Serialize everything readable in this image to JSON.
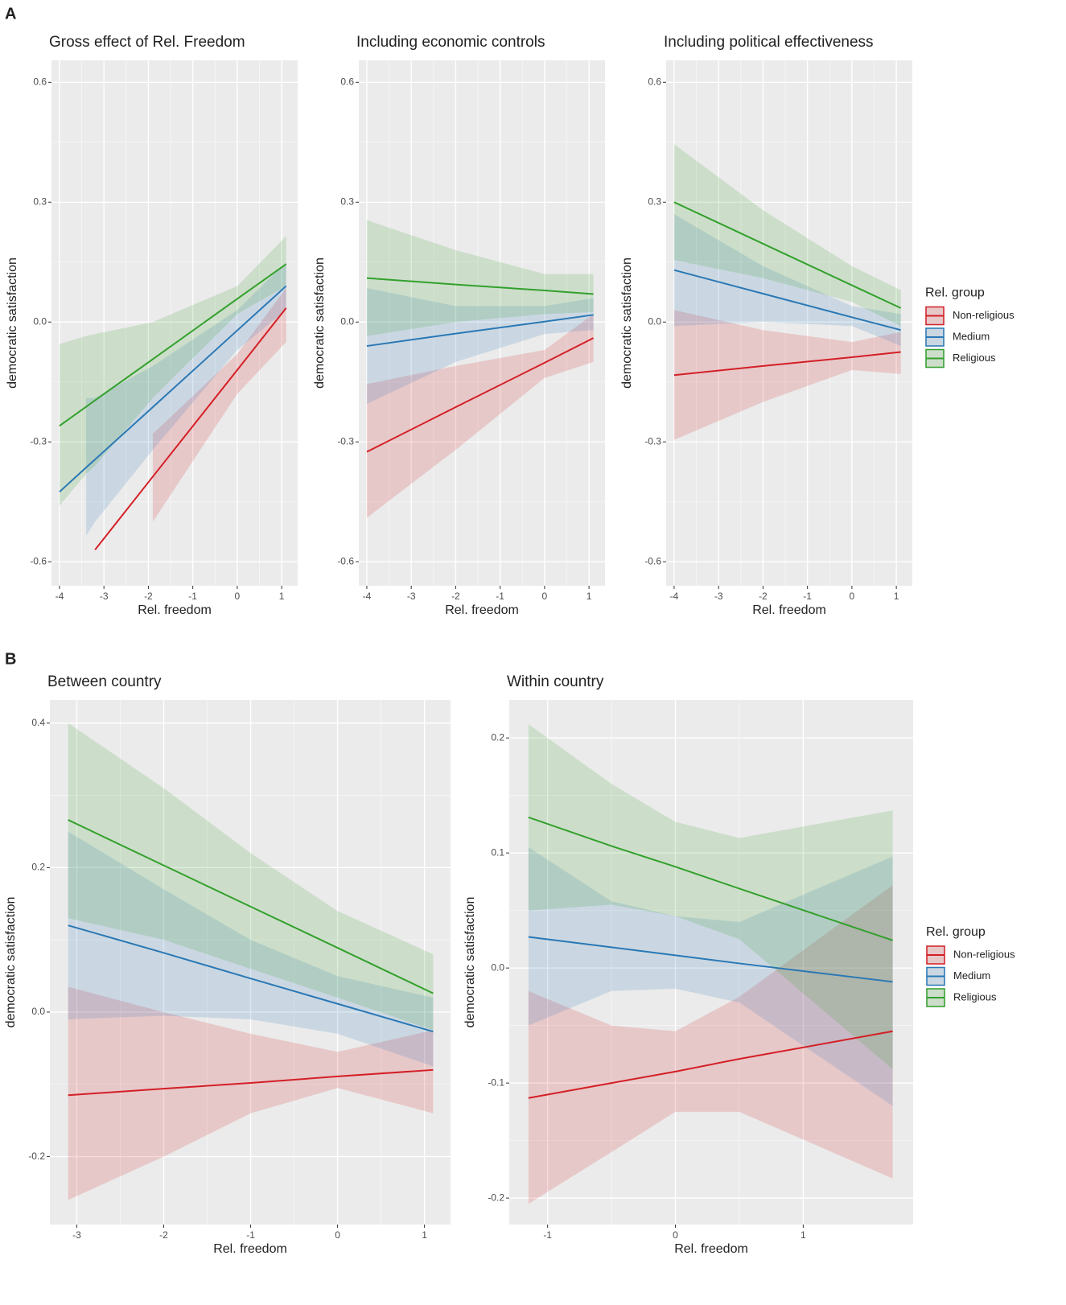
{
  "panel_labels": [
    "A",
    "B"
  ],
  "chart_data": [
    {
      "type": "line",
      "title": "Gross effect of Rel. Freedom",
      "x_label": "Rel. freedom",
      "y_label": "democratic satisfaction",
      "xlim": [
        -4.18,
        1.36
      ],
      "ylim": [
        -0.66,
        0.655
      ],
      "xticks": [
        -4,
        -3,
        -2,
        -1,
        0,
        1
      ],
      "yticks": [
        -0.6,
        -0.3,
        {
          "value": 0,
          "label": "0.0"
        },
        0.3,
        0.6
      ],
      "grid": true,
      "x": [
        -4,
        -3.4,
        -3.2,
        -1.9,
        0,
        1.1
      ],
      "series": [
        {
          "name": "Non-religious",
          "color": "#d41f26",
          "values": [
            null,
            null,
            -0.57,
            -0.387,
            -0.12,
            0.035
          ],
          "lower": [
            null,
            null,
            null,
            -0.5,
            -0.18,
            -0.05
          ],
          "upper": [
            null,
            null,
            null,
            -0.28,
            -0.08,
            0.085
          ]
        },
        {
          "name": "Medium",
          "color": "#2a78b5",
          "values": [
            -0.425,
            -0.364,
            -0.344,
            -0.213,
            -0.021,
            0.09
          ],
          "lower": [
            null,
            -0.535,
            -0.5,
            -0.32,
            -0.07,
            0.03
          ],
          "upper": [
            null,
            -0.19,
            -0.19,
            -0.11,
            0.03,
            0.15
          ]
        },
        {
          "name": "Religious",
          "color": "#33a02c",
          "values": [
            -0.26,
            -0.212,
            -0.196,
            -0.093,
            0.058,
            0.145
          ],
          "lower": [
            -0.46,
            -0.38,
            -0.36,
            -0.19,
            0.02,
            0.09
          ],
          "upper": [
            -0.055,
            -0.035,
            -0.03,
            0.0,
            0.09,
            0.215
          ]
        }
      ]
    },
    {
      "type": "line",
      "title": "Including economic controls",
      "x_label": "Rel. freedom",
      "y_label": "democratic satisfaction",
      "xlim": [
        -4.18,
        1.36
      ],
      "ylim": [
        -0.66,
        0.655
      ],
      "xticks": [
        -4,
        -3,
        -2,
        -1,
        0,
        1
      ],
      "yticks": [
        -0.6,
        -0.3,
        {
          "value": 0,
          "label": "0.0"
        },
        0.3,
        0.6
      ],
      "grid": true,
      "x": [
        -4,
        -2,
        0,
        1.1
      ],
      "series": [
        {
          "name": "Non-religious",
          "color": "#d41f26",
          "values": [
            -0.325,
            -0.213,
            -0.102,
            -0.04
          ],
          "lower": [
            -0.49,
            -0.32,
            -0.14,
            -0.1
          ],
          "upper": [
            -0.155,
            -0.11,
            -0.07,
            0.02
          ]
        },
        {
          "name": "Medium",
          "color": "#2a78b5",
          "values": [
            -0.06,
            -0.029,
            0.001,
            0.018
          ],
          "lower": [
            -0.205,
            -0.1,
            -0.03,
            -0.02
          ],
          "upper": [
            0.085,
            0.04,
            0.04,
            0.06
          ]
        },
        {
          "name": "Religious",
          "color": "#33a02c",
          "values": [
            0.11,
            0.094,
            0.079,
            0.07
          ],
          "lower": [
            -0.035,
            0.0,
            0.02,
            0.025
          ],
          "upper": [
            0.255,
            0.18,
            0.12,
            0.12
          ]
        }
      ]
    },
    {
      "type": "line",
      "title": "Including political effectiveness",
      "x_label": "Rel. freedom",
      "y_label": "democratic satisfaction",
      "xlim": [
        -4.18,
        1.36
      ],
      "ylim": [
        -0.66,
        0.655
      ],
      "xticks": [
        -4,
        -3,
        -2,
        -1,
        0,
        1
      ],
      "yticks": [
        -0.6,
        -0.3,
        {
          "value": 0,
          "label": "0.0"
        },
        0.3,
        0.6
      ],
      "grid": true,
      "legend": "right",
      "legend_title": "Rel. group",
      "x": [
        -4,
        -2,
        0,
        1.1
      ],
      "series": [
        {
          "name": "Non-religious",
          "color": "#d41f26",
          "values": [
            -0.133,
            -0.11,
            -0.088,
            -0.075
          ],
          "lower": [
            -0.295,
            -0.2,
            -0.12,
            -0.13
          ],
          "upper": [
            0.03,
            -0.02,
            -0.05,
            -0.025
          ]
        },
        {
          "name": "Medium",
          "color": "#2a78b5",
          "values": [
            0.13,
            0.071,
            0.012,
            -0.02
          ],
          "lower": [
            -0.01,
            0.0,
            -0.01,
            -0.06
          ],
          "upper": [
            0.27,
            0.14,
            0.04,
            0.02
          ]
        },
        {
          "name": "Religious",
          "color": "#33a02c",
          "values": [
            0.3,
            0.196,
            0.092,
            0.035
          ],
          "lower": [
            0.155,
            0.11,
            0.05,
            -0.01
          ],
          "upper": [
            0.445,
            0.28,
            0.14,
            0.08
          ]
        }
      ]
    },
    {
      "type": "line",
      "title": "Between country",
      "x_label": "Rel. freedom",
      "y_label": "democratic satisfaction",
      "xlim": [
        -3.31,
        1.3
      ],
      "ylim": [
        -0.294,
        0.432
      ],
      "xticks": [
        -3,
        -2,
        -1,
        0,
        1
      ],
      "yticks": [
        -0.2,
        {
          "value": 0,
          "label": "0.0"
        },
        0.2,
        0.4
      ],
      "grid": true,
      "x": [
        -3.1,
        -2,
        -1,
        0,
        1.1
      ],
      "series": [
        {
          "name": "Non-religious",
          "color": "#d41f26",
          "values": [
            -0.115,
            -0.106,
            -0.098,
            -0.089,
            -0.08
          ],
          "lower": [
            -0.26,
            -0.2,
            -0.14,
            -0.105,
            -0.14
          ],
          "upper": [
            0.035,
            0.0,
            -0.03,
            -0.055,
            -0.025
          ]
        },
        {
          "name": "Medium",
          "color": "#2a78b5",
          "values": [
            0.12,
            0.082,
            0.0465,
            0.0115,
            -0.027
          ],
          "lower": [
            -0.01,
            -0.005,
            -0.01,
            -0.03,
            -0.075
          ],
          "upper": [
            0.25,
            0.17,
            0.1,
            0.05,
            0.02
          ]
        },
        {
          "name": "Religious",
          "color": "#33a02c",
          "values": [
            0.266,
            0.203,
            0.146,
            0.089,
            0.026
          ],
          "lower": [
            0.13,
            0.1,
            0.06,
            0.02,
            -0.025
          ],
          "upper": [
            0.4,
            0.31,
            0.22,
            0.14,
            0.08
          ]
        }
      ]
    },
    {
      "type": "line",
      "title": "Within country",
      "x_label": "Rel. freedom",
      "y_label": "democratic satisfaction",
      "xlim": [
        -1.3,
        1.86
      ],
      "ylim": [
        -0.223,
        0.233
      ],
      "xticks": [
        -1,
        0,
        1
      ],
      "yticks": [
        -0.2,
        -0.1,
        {
          "value": 0,
          "label": "0.0"
        },
        0.1,
        0.2
      ],
      "grid": true,
      "legend": "right",
      "legend_title": "Rel. group",
      "x": [
        -1.15,
        -0.5,
        0,
        0.5,
        1.7
      ],
      "series": [
        {
          "name": "Non-religious",
          "color": "#d41f26",
          "values": [
            -0.113,
            -0.1,
            -0.09,
            -0.079,
            -0.055
          ],
          "lower": [
            -0.205,
            -0.16,
            -0.125,
            -0.125,
            -0.183
          ],
          "upper": [
            -0.02,
            -0.05,
            -0.055,
            -0.025,
            0.072
          ]
        },
        {
          "name": "Medium",
          "color": "#2a78b5",
          "values": [
            0.027,
            0.018,
            0.011,
            0.004,
            -0.012
          ],
          "lower": [
            -0.05,
            -0.02,
            -0.018,
            -0.03,
            -0.12
          ],
          "upper": [
            0.105,
            0.058,
            0.045,
            0.04,
            0.097
          ]
        },
        {
          "name": "Religious",
          "color": "#33a02c",
          "values": [
            0.131,
            0.106,
            0.088,
            0.069,
            0.024
          ],
          "lower": [
            0.05,
            0.055,
            0.045,
            0.025,
            -0.088
          ],
          "upper": [
            0.212,
            0.16,
            0.127,
            0.113,
            0.137
          ]
        }
      ]
    }
  ]
}
